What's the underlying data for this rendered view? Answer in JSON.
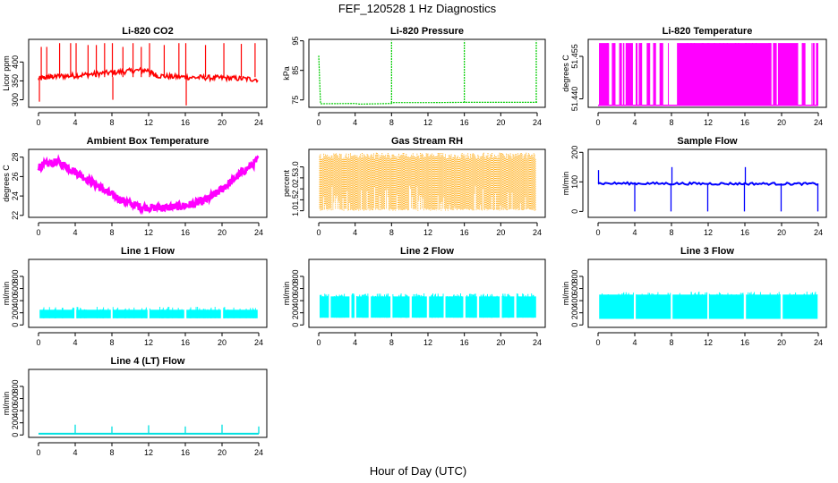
{
  "title": "FEF_120528  1 Hz Diagnostics",
  "xlabel": "Hour of Day (UTC)",
  "chart_data": [
    {
      "type": "line",
      "title": "Li-820 CO2",
      "ylabel": "Licor ppm",
      "color": "#ff0000",
      "xlim": [
        0,
        24
      ],
      "xticks": [
        0,
        4,
        8,
        12,
        16,
        20,
        24
      ],
      "ylim": [
        280,
        460
      ],
      "yticks": [
        300,
        350,
        400
      ],
      "x": [
        0,
        0.5,
        1,
        1.5,
        2,
        3,
        4,
        5,
        6,
        7,
        8,
        9,
        10,
        11,
        12,
        12.5,
        13,
        14,
        15,
        16,
        17,
        18,
        19,
        20,
        21,
        22,
        23,
        24
      ],
      "y": [
        355,
        358,
        360,
        361,
        362,
        363,
        364,
        366,
        368,
        370,
        372,
        374,
        376,
        378,
        378,
        368,
        364,
        362,
        361,
        360,
        359,
        359,
        358,
        358,
        357,
        356,
        355,
        354
      ],
      "spikes": [
        {
          "x": 0.1,
          "y": 295
        },
        {
          "x": 0.3,
          "y": 440
        },
        {
          "x": 0.9,
          "y": 440
        },
        {
          "x": 2.3,
          "y": 450
        },
        {
          "x": 3.5,
          "y": 450
        },
        {
          "x": 4.1,
          "y": 450
        },
        {
          "x": 5.4,
          "y": 445
        },
        {
          "x": 6.3,
          "y": 445
        },
        {
          "x": 7.2,
          "y": 450
        },
        {
          "x": 8.05,
          "y": 450
        },
        {
          "x": 8.1,
          "y": 300
        },
        {
          "x": 9.2,
          "y": 440
        },
        {
          "x": 10.3,
          "y": 450
        },
        {
          "x": 11.2,
          "y": 440
        },
        {
          "x": 12.1,
          "y": 450
        },
        {
          "x": 13.7,
          "y": 445
        },
        {
          "x": 15.3,
          "y": 450
        },
        {
          "x": 16.05,
          "y": 450
        },
        {
          "x": 16.1,
          "y": 285
        },
        {
          "x": 18.2,
          "y": 445
        },
        {
          "x": 20.2,
          "y": 450
        },
        {
          "x": 22.1,
          "y": 448
        },
        {
          "x": 23.6,
          "y": 450
        }
      ]
    },
    {
      "type": "line",
      "title": "Li-820 Pressure",
      "ylabel": "kPa",
      "color": "#00cc00",
      "xlim": [
        0,
        24
      ],
      "xticks": [
        0,
        4,
        8,
        12,
        16,
        20,
        24
      ],
      "ylim": [
        72.5,
        95.5
      ],
      "yticks": [
        75,
        85,
        95
      ],
      "x": [
        0,
        0.2,
        4,
        4.5,
        8,
        8.2,
        12,
        16,
        20,
        24
      ],
      "y": [
        90,
        73.7,
        73.8,
        73.6,
        73.8,
        74.1,
        74.1,
        74.2,
        74.2,
        74.2
      ],
      "spikes": [
        {
          "x": 8.0,
          "y": 95
        },
        {
          "x": 16.0,
          "y": 95
        },
        {
          "x": 23.9,
          "y": 95
        }
      ]
    },
    {
      "type": "line",
      "title": "Li-820 Temperature",
      "ylabel": "degrees C",
      "color": "#ff00ff",
      "xlim": [
        0,
        24
      ],
      "xticks": [
        0,
        4,
        8,
        12,
        16,
        20,
        24
      ],
      "ylim": [
        51.437,
        51.461
      ],
      "yticks": [
        51.44,
        51.455
      ],
      "ytick_labels": [
        "51.440",
        "51.455"
      ],
      "low": 51.4377,
      "high": 51.4597,
      "filled_ranges": [
        [
          0.1,
          1.2
        ],
        [
          1.5,
          1.9
        ],
        [
          2.3,
          2.6
        ],
        [
          3.0,
          3.8
        ],
        [
          4.1,
          4.3
        ],
        [
          4.5,
          4.8
        ],
        [
          5.3,
          5.6
        ],
        [
          6.0,
          6.3
        ],
        [
          6.7,
          7.1
        ],
        [
          8.6,
          18.9
        ],
        [
          19.1,
          19.4
        ],
        [
          19.6,
          21.8
        ],
        [
          22.2,
          22.6
        ],
        [
          23.4,
          23.6
        ],
        [
          23.8,
          24.0
        ]
      ]
    },
    {
      "type": "line",
      "title": "Ambient Box Temperature",
      "ylabel": "degrees C",
      "color": "#ff00ff",
      "xlim": [
        0,
        24
      ],
      "xticks": [
        0,
        4,
        8,
        12,
        16,
        20,
        24
      ],
      "ylim": [
        21.8,
        28.8
      ],
      "yticks": [
        22,
        24,
        26,
        28
      ],
      "x": [
        0,
        1,
        2,
        3,
        4,
        5,
        6,
        7,
        8,
        9,
        10,
        11,
        12,
        13,
        14,
        15,
        16,
        17,
        18,
        19,
        20,
        21,
        22,
        23,
        24
      ],
      "y": [
        27.0,
        27.3,
        27.5,
        27.1,
        26.5,
        25.9,
        25.3,
        24.7,
        24.1,
        23.6,
        23.2,
        22.9,
        22.8,
        22.8,
        22.8,
        22.9,
        23.0,
        23.2,
        23.5,
        24.0,
        24.7,
        25.5,
        26.3,
        27.0,
        27.8
      ]
    },
    {
      "type": "scatter",
      "title": "Gas Stream RH",
      "ylabel": "percent",
      "color": "#ffa500",
      "xlim": [
        0,
        24
      ],
      "xticks": [
        0,
        4,
        8,
        12,
        16,
        20,
        24
      ],
      "ylim": [
        0.7,
        3.8
      ],
      "yticks": [
        1.0,
        1.5,
        2.0,
        2.5,
        3.0
      ],
      "ytick_labels": [
        "1.0",
        "1.5",
        "2.0",
        "2.5",
        "3.0"
      ],
      "low": 1.0,
      "high": 3.5
    },
    {
      "type": "line",
      "title": "Sample Flow",
      "ylabel": "ml/min",
      "color": "#0000ff",
      "xlim": [
        0,
        24
      ],
      "xticks": [
        0,
        4,
        8,
        12,
        16,
        20,
        24
      ],
      "ylim": [
        -20,
        210
      ],
      "yticks": [
        0,
        100,
        200
      ],
      "base": 95,
      "x": [
        0,
        4,
        8,
        12,
        16,
        20,
        24
      ],
      "y": [
        95,
        95,
        95,
        94,
        94,
        94,
        93
      ],
      "spikes": [
        {
          "x": 0.05,
          "y": 140
        },
        {
          "x": 4.0,
          "y": 0
        },
        {
          "x": 7.95,
          "y": 0
        },
        {
          "x": 8.05,
          "y": 150
        },
        {
          "x": 11.95,
          "y": 0
        },
        {
          "x": 15.95,
          "y": 0
        },
        {
          "x": 16.05,
          "y": 150
        },
        {
          "x": 19.95,
          "y": 0
        },
        {
          "x": 23.95,
          "y": 0
        }
      ]
    },
    {
      "type": "area",
      "title": "Line 1 Flow",
      "ylabel": "ml/min",
      "color": "#00ffff",
      "xlim": [
        0,
        24
      ],
      "xticks": [
        0,
        4,
        8,
        12,
        16,
        20,
        24
      ],
      "ylim": [
        -40,
        1080
      ],
      "yticks": [
        0,
        200,
        400,
        600,
        800
      ],
      "low": 110,
      "high": 250,
      "gaps": [
        4.0,
        8.0,
        12.0,
        16.0,
        20.0
      ]
    },
    {
      "type": "area",
      "title": "Line 2 Flow",
      "ylabel": "ml/min",
      "color": "#00ffff",
      "xlim": [
        0,
        24
      ],
      "xticks": [
        0,
        4,
        8,
        12,
        16,
        20,
        24
      ],
      "ylim": [
        -40,
        1080
      ],
      "yticks": [
        0,
        200,
        400,
        600,
        800
      ],
      "low": 120,
      "high": 470,
      "gaps": [
        1.2,
        3.5,
        4.0,
        5.6,
        8.0,
        10.1,
        12.0,
        13.8,
        16.0,
        17.5,
        20.0,
        21.6
      ]
    },
    {
      "type": "area",
      "title": "Line 3 Flow",
      "ylabel": "ml/min",
      "color": "#00ffff",
      "xlim": [
        0,
        24
      ],
      "xticks": [
        0,
        4,
        8,
        12,
        16,
        20,
        24
      ],
      "ylim": [
        -40,
        1080
      ],
      "yticks": [
        0,
        200,
        400,
        600,
        800
      ],
      "low": 100,
      "high": 500,
      "gaps": [
        4.0,
        8.0,
        12.0,
        16.0,
        20.0
      ]
    },
    {
      "type": "line",
      "title": "Line 4 (LT) Flow",
      "ylabel": "ml/min",
      "color": "#00e0e0",
      "xlim": [
        0,
        24
      ],
      "xticks": [
        0,
        4,
        8,
        12,
        16,
        20,
        24
      ],
      "ylim": [
        -40,
        1080
      ],
      "yticks": [
        0,
        200,
        400,
        600,
        800
      ],
      "x": [
        0,
        24
      ],
      "y": [
        20,
        20
      ],
      "spikes": [
        {
          "x": 4.0,
          "y": 170
        },
        {
          "x": 8.0,
          "y": 140
        },
        {
          "x": 12.0,
          "y": 160
        },
        {
          "x": 16.0,
          "y": 140
        },
        {
          "x": 20.0,
          "y": 170
        },
        {
          "x": 24.0,
          "y": 140
        }
      ]
    }
  ]
}
